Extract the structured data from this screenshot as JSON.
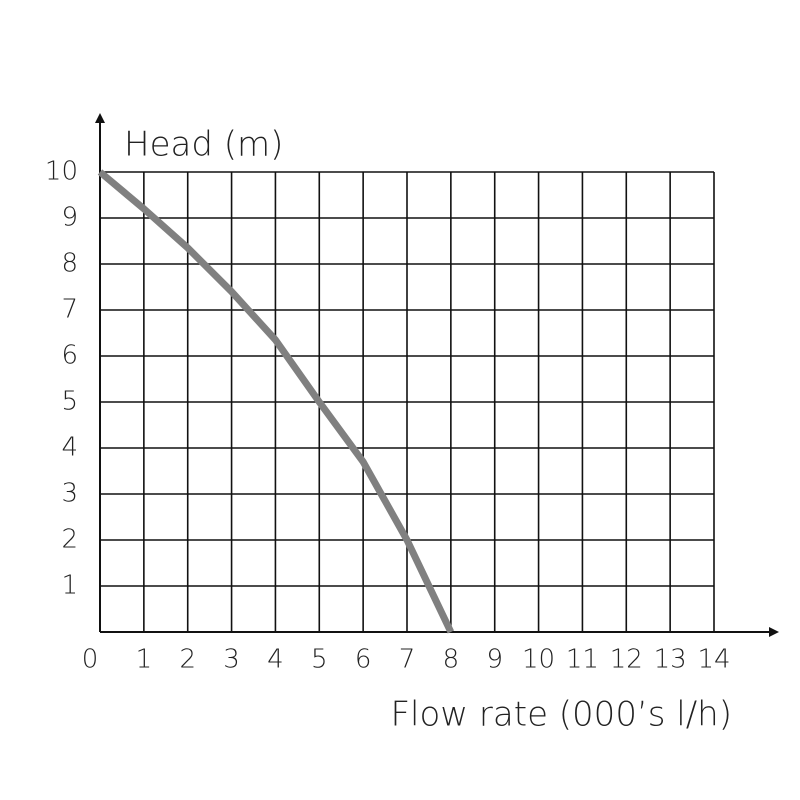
{
  "chart_data": {
    "type": "line",
    "y_label": "Head (m)",
    "x_label": "Flow rate (000’s l/h)",
    "x": [
      0,
      1,
      2,
      3,
      4,
      5,
      6,
      7,
      8
    ],
    "series": [
      {
        "color": "#808080",
        "values": [
          10,
          9.2,
          8.35,
          7.4,
          6.35,
          5.0,
          3.7,
          2.0,
          0
        ]
      }
    ],
    "xlim": [
      0,
      14
    ],
    "ylim": [
      0,
      10
    ],
    "xticks": [
      0,
      1,
      2,
      3,
      4,
      5,
      6,
      7,
      8,
      9,
      10,
      11,
      12,
      13,
      14
    ],
    "yticks": [
      1,
      2,
      3,
      4,
      5,
      6,
      7,
      8,
      9,
      10
    ],
    "grid": true
  }
}
